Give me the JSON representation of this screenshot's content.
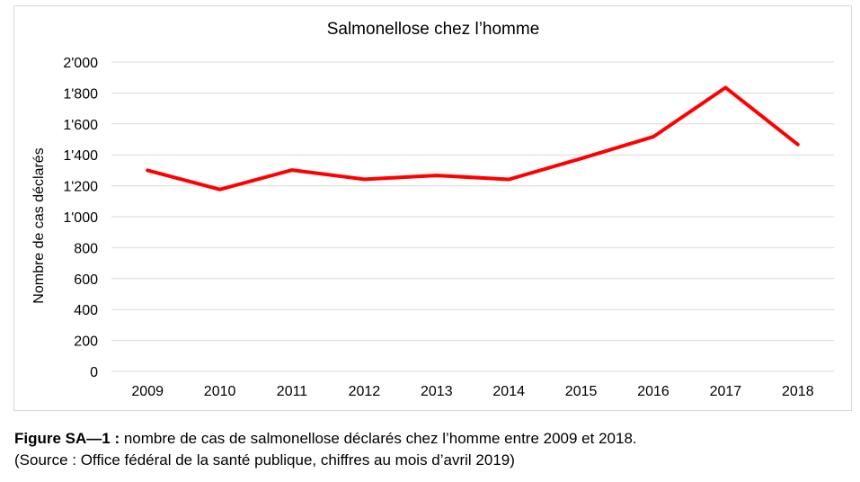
{
  "chart_data": {
    "type": "line",
    "title": "Salmonellose chez l’homme",
    "xlabel": "",
    "ylabel": "Nombre de cas déclarés",
    "categories": [
      "2009",
      "2010",
      "2011",
      "2012",
      "2013",
      "2014",
      "2015",
      "2016",
      "2017",
      "2018"
    ],
    "series": [
      {
        "values": [
          1300,
          1176,
          1302,
          1242,
          1267,
          1241,
          1376,
          1517,
          1835,
          1467
        ],
        "color": "#ff0000"
      }
    ],
    "ylim": [
      0,
      2000
    ],
    "y_ticks": [
      0,
      200,
      400,
      600,
      800,
      1000,
      1200,
      1400,
      1600,
      1800,
      2000
    ],
    "y_tick_labels": [
      "0",
      "200",
      "400",
      "600",
      "800",
      "1'000",
      "1'200",
      "1'400",
      "1'600",
      "1'800",
      "2'000"
    ],
    "grid": "horizontal",
    "legend": "none",
    "gridline_color": "#d9d9d9"
  },
  "caption": {
    "label": "Figure SA—1 :",
    "text": " nombre de cas de salmonellose déclarés chez l’homme entre 2009 et 2018.",
    "source": "(Source : Office fédéral de la santé publique, chiffres au mois d’avril 2019)"
  }
}
